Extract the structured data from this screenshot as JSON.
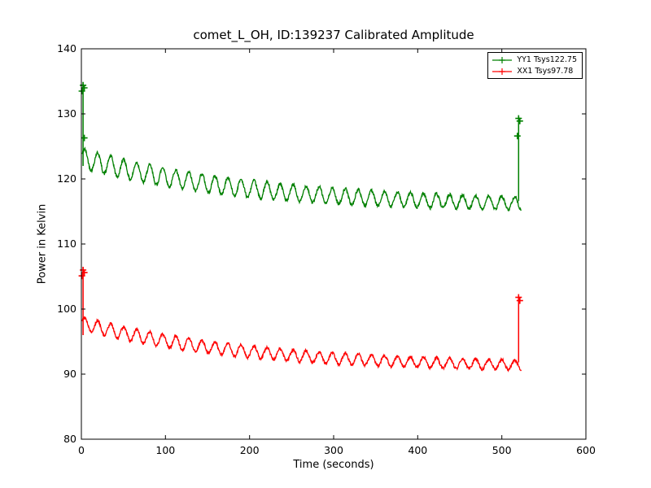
{
  "figure": {
    "background": "#ffffff",
    "axes_color": "#000000"
  },
  "chart_data": {
    "type": "line",
    "title": "comet_L_OH, ID:139237 Calibrated Amplitude",
    "xlabel": "Time (seconds)",
    "ylabel": "Power in Kelvin",
    "xlim": [
      0,
      600
    ],
    "ylim": [
      80,
      140
    ],
    "xticks": [
      0,
      100,
      200,
      300,
      400,
      500,
      600
    ],
    "xtick_labels": [
      "0",
      "100",
      "200",
      "300",
      "400",
      "500",
      "600"
    ],
    "yticks": [
      80,
      90,
      100,
      110,
      120,
      130,
      140
    ],
    "ytick_labels": [
      "80",
      "90",
      "100",
      "110",
      "120",
      "130",
      "140"
    ],
    "grid": false,
    "legend": {
      "position": "upper right",
      "entries": [
        "YY1 Tsys122.75",
        "XX1 Tsys97.78"
      ]
    },
    "series": [
      {
        "name": "YY1 Tsys122.75",
        "color": "#008000",
        "marker": "+",
        "sampled_center": {
          "t": [
            10,
            50,
            100,
            150,
            200,
            250,
            300,
            350,
            400,
            450,
            500
          ],
          "value": [
            122.9,
            121.6,
            120.3,
            119.3,
            118.5,
            117.9,
            117.4,
            117.0,
            116.7,
            116.5,
            116.3
          ]
        },
        "model": {
          "t_start": 1,
          "t_end": 523,
          "sample_step": 0.4,
          "baseline_start": 123.2,
          "baseline_end": 115.7,
          "decay_tau": 200,
          "osc_amplitude_start": 1.5,
          "osc_amplitude_end": 1.0,
          "osc_period": 15.5,
          "noise": 0.25,
          "start_spike": {
            "t": 2,
            "bottom": 122.0,
            "top": 134.6,
            "cluster": [
              134.4,
              134.0,
              133.5,
              126.3
            ]
          },
          "end_spike": {
            "t": 520,
            "bottom": 116.6,
            "top": 129.6,
            "cluster": [
              129.3,
              128.9,
              126.6
            ]
          }
        }
      },
      {
        "name": "XX1 Tsys97.78",
        "color": "#ff0000",
        "marker": "+",
        "sampled_center": {
          "t": [
            10,
            50,
            100,
            150,
            200,
            250,
            300,
            350,
            400,
            450,
            500
          ],
          "value": [
            97.5,
            96.5,
            95.1,
            94.2,
            93.4,
            92.9,
            92.5,
            92.1,
            91.8,
            91.6,
            91.5
          ]
        },
        "model": {
          "t_start": 1,
          "t_end": 523,
          "sample_step": 0.4,
          "baseline_start": 97.8,
          "baseline_end": 90.9,
          "decay_tau": 200,
          "osc_amplitude_start": 1.0,
          "osc_amplitude_end": 0.75,
          "osc_period": 15.5,
          "noise": 0.22,
          "start_spike": {
            "t": 2,
            "bottom": 96.0,
            "top": 106.2,
            "cluster": [
              106.0,
              105.6,
              105.1
            ]
          },
          "end_spike": {
            "t": 520,
            "bottom": 91.8,
            "top": 102.0,
            "cluster": [
              101.8,
              101.3
            ]
          }
        }
      }
    ]
  }
}
